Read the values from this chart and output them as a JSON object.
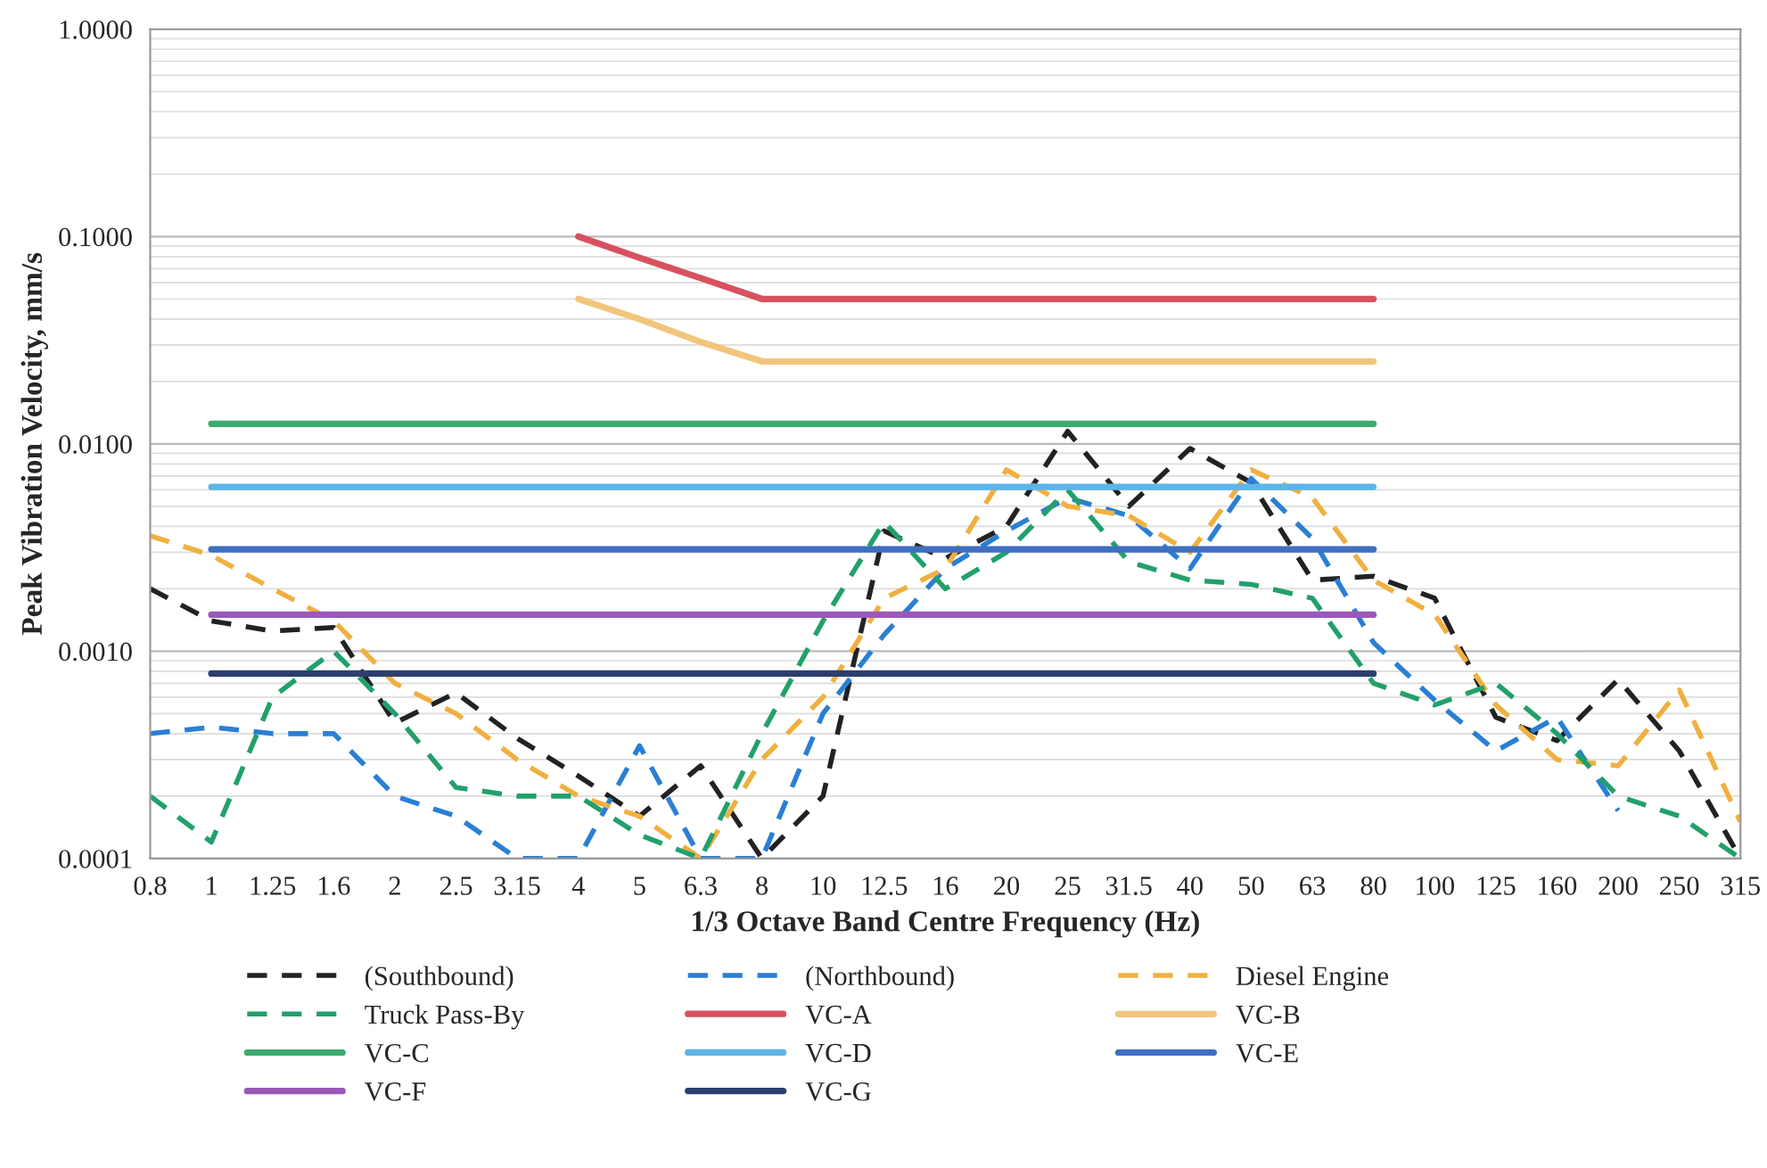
{
  "chart_data": {
    "type": "line",
    "xlabel": "1/3 Octave Band Centre Frequency (Hz)",
    "ylabel": "Peak Vibration Velocity, mm/s",
    "categories": [
      "0.8",
      "1",
      "1.25",
      "1.6",
      "2",
      "2.5",
      "3.15",
      "4",
      "5",
      "6.3",
      "8",
      "10",
      "12.5",
      "16",
      "20",
      "25",
      "31.5",
      "40",
      "50",
      "63",
      "80",
      "100",
      "125",
      "160",
      "200",
      "250",
      "315"
    ],
    "log": "y",
    "ylim": [
      0.0001,
      1
    ],
    "yticks": [
      {
        "value": 0.0001,
        "label": "0.0001"
      },
      {
        "value": 0.001,
        "label": "0.0010"
      },
      {
        "value": 0.01,
        "label": "0.0100"
      },
      {
        "value": 0.1,
        "label": "0.1000"
      },
      {
        "value": 1,
        "label": "1.0000"
      }
    ],
    "grid": "y",
    "legend": "bottom",
    "series": [
      {
        "name": "(Southbound)",
        "color": "#222222",
        "line_style": "dashed",
        "values": [
          0.002,
          0.0014,
          0.00125,
          0.0013,
          0.00045,
          0.00063,
          0.00038,
          0.00025,
          0.00016,
          0.00028,
          0.0001,
          0.0002,
          0.0038,
          0.0028,
          0.004,
          0.0115,
          0.005,
          0.0095,
          0.0065,
          0.0022,
          0.0023,
          0.0018,
          0.00048,
          0.00037,
          0.00073,
          0.00033,
          0.0001
        ]
      },
      {
        "name": "(Northbound)",
        "color": "#2a7fd4",
        "line_style": "dashed",
        "values": [
          0.0004,
          0.00043,
          0.0004,
          0.0004,
          0.0002,
          0.00016,
          0.0001,
          0.0001,
          0.00035,
          0.0001,
          0.0001,
          0.0005,
          0.0012,
          0.0025,
          0.0038,
          0.0055,
          0.0045,
          0.0025,
          0.0068,
          0.0035,
          0.0011,
          0.00058,
          0.00033,
          0.00048,
          0.00017,
          null,
          null
        ]
      },
      {
        "name": "Diesel Engine",
        "color": "#f0b040",
        "line_style": "dashed",
        "values": [
          0.0036,
          0.0029,
          0.002,
          0.0014,
          0.0007,
          0.0005,
          0.0003,
          0.0002,
          0.00016,
          0.0001,
          0.0003,
          0.0006,
          0.0018,
          0.0025,
          0.0075,
          0.005,
          0.0045,
          0.003,
          0.0075,
          0.0055,
          0.0022,
          0.0015,
          0.00055,
          0.0003,
          0.00028,
          0.00065,
          0.00015
        ]
      },
      {
        "name": "Truck Pass-By",
        "color": "#22a06b",
        "line_style": "dashed",
        "values": [
          0.0002,
          0.00012,
          0.0006,
          0.001,
          0.0005,
          0.00022,
          0.0002,
          0.0002,
          0.00013,
          0.0001,
          0.0004,
          0.0014,
          0.0042,
          0.002,
          0.003,
          0.006,
          0.0027,
          0.0022,
          0.0021,
          0.0018,
          0.0007,
          0.00055,
          0.0007,
          0.0004,
          0.0002,
          0.00016,
          0.0001
        ]
      },
      {
        "name": "VC-A",
        "color": "#d9515e",
        "line_style": "solid",
        "values": [
          null,
          null,
          null,
          null,
          null,
          null,
          null,
          0.1,
          0.079,
          0.063,
          0.05,
          0.05,
          0.05,
          0.05,
          0.05,
          0.05,
          0.05,
          0.05,
          0.05,
          0.05,
          0.05,
          null,
          null,
          null,
          null,
          null,
          null
        ]
      },
      {
        "name": "VC-B",
        "color": "#f2c57c",
        "line_style": "solid",
        "values": [
          null,
          null,
          null,
          null,
          null,
          null,
          null,
          0.05,
          0.04,
          0.031,
          0.025,
          0.025,
          0.025,
          0.025,
          0.025,
          0.025,
          0.025,
          0.025,
          0.025,
          0.025,
          0.025,
          null,
          null,
          null,
          null,
          null,
          null
        ]
      },
      {
        "name": "VC-C",
        "color": "#3daa6e",
        "line_style": "solid",
        "values": [
          null,
          0.0125,
          0.0125,
          0.0125,
          0.0125,
          0.0125,
          0.0125,
          0.0125,
          0.0125,
          0.0125,
          0.0125,
          0.0125,
          0.0125,
          0.0125,
          0.0125,
          0.0125,
          0.0125,
          0.0125,
          0.0125,
          0.0125,
          0.0125,
          null,
          null,
          null,
          null,
          null,
          null
        ]
      },
      {
        "name": "VC-D",
        "color": "#5fb4e6",
        "line_style": "solid",
        "values": [
          null,
          0.0062,
          0.0062,
          0.0062,
          0.0062,
          0.0062,
          0.0062,
          0.0062,
          0.0062,
          0.0062,
          0.0062,
          0.0062,
          0.0062,
          0.0062,
          0.0062,
          0.0062,
          0.0062,
          0.0062,
          0.0062,
          0.0062,
          0.0062,
          null,
          null,
          null,
          null,
          null,
          null
        ]
      },
      {
        "name": "VC-E",
        "color": "#3d6fc2",
        "line_style": "solid",
        "values": [
          null,
          0.0031,
          0.0031,
          0.0031,
          0.0031,
          0.0031,
          0.0031,
          0.0031,
          0.0031,
          0.0031,
          0.0031,
          0.0031,
          0.0031,
          0.0031,
          0.0031,
          0.0031,
          0.0031,
          0.0031,
          0.0031,
          0.0031,
          0.0031,
          null,
          null,
          null,
          null,
          null,
          null
        ]
      },
      {
        "name": "VC-F",
        "color": "#9b59b6",
        "line_style": "solid",
        "values": [
          null,
          0.0015,
          0.0015,
          0.0015,
          0.0015,
          0.0015,
          0.0015,
          0.0015,
          0.0015,
          0.0015,
          0.0015,
          0.0015,
          0.0015,
          0.0015,
          0.0015,
          0.0015,
          0.0015,
          0.0015,
          0.0015,
          0.0015,
          0.0015,
          null,
          null,
          null,
          null,
          null,
          null
        ]
      },
      {
        "name": "VC-G",
        "color": "#2c3e70",
        "line_style": "solid",
        "values": [
          null,
          0.00078,
          0.00078,
          0.00078,
          0.00078,
          0.00078,
          0.00078,
          0.00078,
          0.00078,
          0.00078,
          0.00078,
          0.00078,
          0.00078,
          0.00078,
          0.00078,
          0.00078,
          0.00078,
          0.00078,
          0.00078,
          0.00078,
          0.00078,
          null,
          null,
          null,
          null,
          null,
          null
        ]
      }
    ]
  }
}
